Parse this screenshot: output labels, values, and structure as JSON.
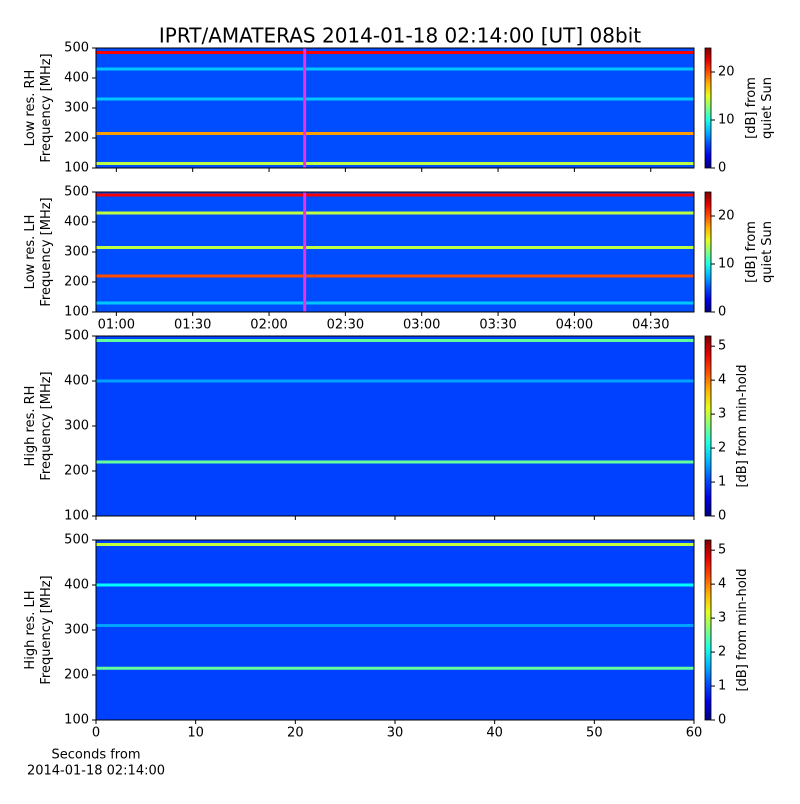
{
  "title": "IPRT/AMATERAS 2014-01-18 02:14:00 [UT]   08bit",
  "chart_data": [
    {
      "type": "heatmap",
      "ylabel": [
        "Low res. RH",
        "Frequency [MHz]"
      ],
      "xlim": [
        52,
        287
      ],
      "sharex_with": 1,
      "ylim": [
        100,
        500
      ],
      "yticks": [
        100,
        200,
        300,
        400,
        500
      ],
      "colormap": "jet",
      "clim": [
        0,
        25
      ],
      "cticks": [
        0,
        10,
        20
      ],
      "clabel": [
        "[dB] from",
        "quiet Sun"
      ],
      "background_value": 5,
      "bands": [
        {
          "freq": 485,
          "value": 22
        },
        {
          "freq": 430,
          "value": 8
        },
        {
          "freq": 330,
          "value": 8
        },
        {
          "freq": 215,
          "value": 18
        },
        {
          "freq": 115,
          "value": 14
        }
      ],
      "marker": {
        "x": 134,
        "color": "#e633e6"
      }
    },
    {
      "type": "heatmap",
      "ylabel": [
        "Low res. LH",
        "Frequency [MHz]"
      ],
      "xlim": [
        52,
        287
      ],
      "xticks": [
        {
          "value": 60,
          "label": "01:00"
        },
        {
          "value": 90,
          "label": "01:30"
        },
        {
          "value": 120,
          "label": "02:00"
        },
        {
          "value": 150,
          "label": "02:30"
        },
        {
          "value": 180,
          "label": "03:00"
        },
        {
          "value": 210,
          "label": "03:30"
        },
        {
          "value": 240,
          "label": "04:00"
        },
        {
          "value": 270,
          "label": "04:30"
        }
      ],
      "ylim": [
        100,
        500
      ],
      "yticks": [
        100,
        200,
        300,
        400,
        500
      ],
      "colormap": "jet",
      "clim": [
        0,
        25
      ],
      "cticks": [
        0,
        10,
        20
      ],
      "clabel": [
        "[dB] from",
        "quiet Sun"
      ],
      "background_value": 5,
      "bands": [
        {
          "freq": 490,
          "value": 22
        },
        {
          "freq": 430,
          "value": 14
        },
        {
          "freq": 315,
          "value": 14
        },
        {
          "freq": 220,
          "value": 20
        },
        {
          "freq": 130,
          "value": 8
        }
      ],
      "marker": {
        "x": 134,
        "color": "#e633e6"
      }
    },
    {
      "type": "heatmap",
      "ylabel": [
        "High res. RH",
        "Frequency [MHz]"
      ],
      "xlim": [
        0,
        60
      ],
      "sharex_with": 3,
      "ylim": [
        100,
        500
      ],
      "yticks": [
        100,
        200,
        300,
        400,
        500
      ],
      "colormap": "jet",
      "clim": [
        0,
        5.3
      ],
      "cticks": [
        0,
        1,
        2,
        3,
        4,
        5
      ],
      "clabel": [
        "[dB] from min-hold"
      ],
      "background_value": 1,
      "bands": [
        {
          "freq": 490,
          "value": 2.5
        },
        {
          "freq": 400,
          "value": 1.5
        },
        {
          "freq": 220,
          "value": 2.5
        }
      ]
    },
    {
      "type": "heatmap",
      "ylabel": [
        "High res. LH",
        "Frequency [MHz]"
      ],
      "xlim": [
        0,
        60
      ],
      "xticks": [
        0,
        10,
        20,
        30,
        40,
        50,
        60
      ],
      "xlabel": [
        "Seconds from",
        "2014-01-18 02:14:00"
      ],
      "ylim": [
        100,
        500
      ],
      "yticks": [
        100,
        200,
        300,
        400,
        500
      ],
      "colormap": "jet",
      "clim": [
        0,
        5.3
      ],
      "cticks": [
        0,
        1,
        2,
        3,
        4,
        5
      ],
      "clabel": [
        "[dB] from min-hold"
      ],
      "background_value": 1,
      "bands": [
        {
          "freq": 490,
          "value": 3
        },
        {
          "freq": 400,
          "value": 2
        },
        {
          "freq": 310,
          "value": 1.5
        },
        {
          "freq": 215,
          "value": 2.5
        }
      ]
    }
  ]
}
